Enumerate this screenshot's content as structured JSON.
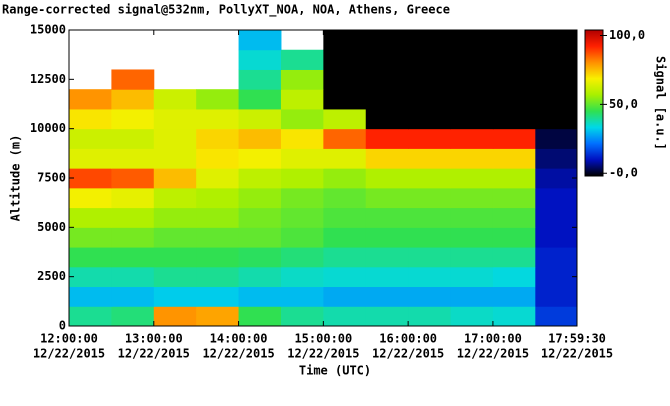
{
  "chart_data": {
    "type": "heatmap",
    "title": "Range-corrected signal@532nm, PollyXT_NOA, NOA, Athens, Greece",
    "x_label": "Time (UTC)",
    "y_label": "Altitude (m)",
    "colorbar_label": "Signal [a.u.]",
    "xlim": [
      12,
      17.991667
    ],
    "ylim": [
      0,
      15000
    ],
    "xticks": [
      {
        "value": 12,
        "label": "12:00:00",
        "sublabel": "12/22/2015"
      },
      {
        "value": 13,
        "label": "13:00:00",
        "sublabel": "12/22/2015"
      },
      {
        "value": 14,
        "label": "14:00:00",
        "sublabel": "12/22/2015"
      },
      {
        "value": 15,
        "label": "15:00:00",
        "sublabel": "12/22/2015"
      },
      {
        "value": 16,
        "label": "16:00:00",
        "sublabel": "12/22/2015"
      },
      {
        "value": 17,
        "label": "17:00:00",
        "sublabel": "12/22/2015"
      },
      {
        "value": 17.991667,
        "label": "17:59:30",
        "sublabel": "12/22/2015"
      }
    ],
    "yticks": [
      0,
      2500,
      5000,
      7500,
      10000,
      12500,
      15000
    ],
    "clim": [
      -2,
      104
    ],
    "cticks": [
      {
        "value": 100,
        "label": "100,0"
      },
      {
        "value": 50,
        "label": "50,0"
      },
      {
        "value": 0,
        "label": "-0,0"
      }
    ],
    "colormap": [
      "#000000",
      "#0010c0",
      "#0070ff",
      "#00d8e8",
      "#30e050",
      "#a8f000",
      "#f8f000",
      "#ff9000",
      "#ff2000",
      "#b00000"
    ],
    "xbins": [
      12,
      12.5,
      13,
      13.5,
      14,
      14.5,
      15,
      15.5,
      16,
      16.5,
      17,
      17.5,
      17.991667
    ],
    "ybins": [
      0,
      1000,
      2000,
      3000,
      4000,
      5000,
      6000,
      7000,
      8000,
      9000,
      10000,
      11000,
      12000,
      13000,
      14000,
      15000
    ],
    "z": [
      [
        40,
        42,
        80,
        78,
        45,
        40,
        38,
        38,
        38,
        36,
        35,
        15
      ],
      [
        30,
        30,
        32,
        32,
        30,
        30,
        28,
        28,
        28,
        28,
        28,
        12
      ],
      [
        38,
        38,
        40,
        40,
        38,
        36,
        35,
        35,
        35,
        35,
        34,
        12
      ],
      [
        45,
        45,
        45,
        45,
        44,
        42,
        40,
        40,
        40,
        40,
        40,
        12
      ],
      [
        52,
        52,
        50,
        50,
        50,
        48,
        45,
        45,
        45,
        45,
        45,
        10
      ],
      [
        58,
        58,
        55,
        55,
        52,
        50,
        48,
        48,
        48,
        48,
        48,
        10
      ],
      [
        68,
        66,
        60,
        58,
        55,
        52,
        50,
        52,
        52,
        52,
        52,
        10
      ],
      [
        88,
        86,
        75,
        65,
        60,
        58,
        55,
        58,
        58,
        58,
        58,
        8
      ],
      [
        65,
        65,
        65,
        70,
        68,
        65,
        65,
        72,
        72,
        72,
        72,
        5
      ],
      [
        62,
        62,
        65,
        72,
        75,
        70,
        85,
        92,
        92,
        92,
        92,
        2
      ],
      [
        70,
        68,
        65,
        65,
        62,
        55,
        60,
        -2,
        -2,
        -2,
        -2,
        -2
      ],
      [
        80,
        75,
        62,
        55,
        45,
        60,
        -2,
        -2,
        -2,
        -2,
        -2,
        -2
      ],
      [
        null,
        85,
        null,
        null,
        40,
        55,
        -2,
        -2,
        -2,
        -2,
        -2,
        -2
      ],
      [
        null,
        null,
        null,
        null,
        35,
        40,
        -2,
        -2,
        -2,
        -2,
        -2,
        -2
      ],
      [
        null,
        null,
        null,
        null,
        30,
        null,
        -2,
        -2,
        -2,
        -2,
        -2,
        -2
      ]
    ]
  }
}
